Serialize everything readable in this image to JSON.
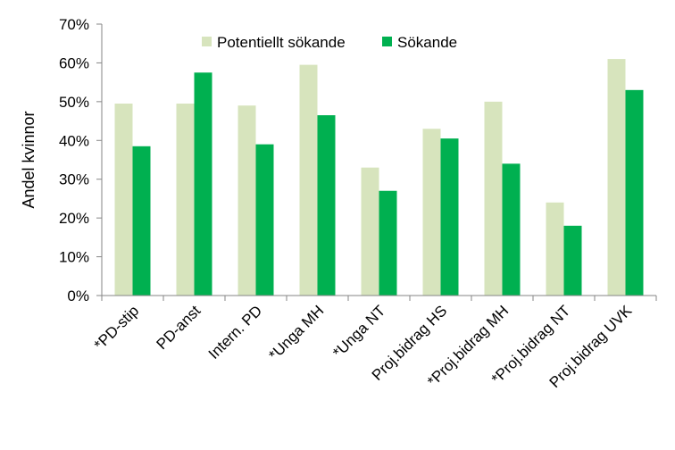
{
  "chart_data": {
    "type": "bar",
    "categories": [
      "*PD-stip",
      "PD-anst",
      "Intern. PD",
      "*Unga MH",
      "*Unga NT",
      "Proj.bidrag HS",
      "*Proj.bidrag MH",
      "*Proj.bidrag NT",
      "Proj.bidrag UVK"
    ],
    "series": [
      {
        "name": "Potentiellt sökande",
        "color": "#d7e4bd",
        "values": [
          49.5,
          49.5,
          49,
          59.5,
          33,
          43,
          50,
          24,
          61
        ]
      },
      {
        "name": "Sökande",
        "color": "#00b050",
        "values": [
          38.5,
          57.5,
          39,
          46.5,
          27,
          40.5,
          34,
          18,
          53
        ]
      }
    ],
    "ylabel": "Andel kvinnor",
    "xlabel": "",
    "ylim": [
      0,
      70
    ],
    "yticks": [
      "0%",
      "10%",
      "20%",
      "30%",
      "40%",
      "50%",
      "60%",
      "70%"
    ],
    "grid": false,
    "legend_position": "top-center"
  }
}
